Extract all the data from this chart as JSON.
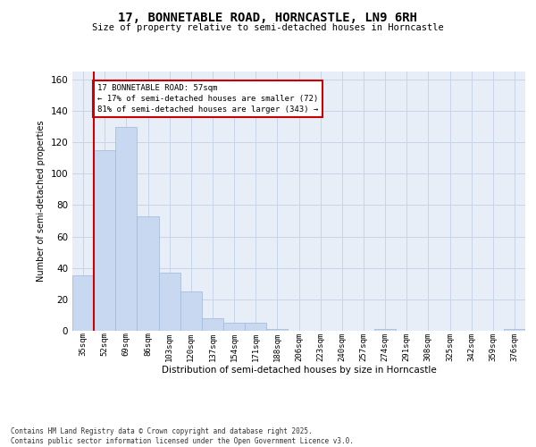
{
  "title": "17, BONNETABLE ROAD, HORNCASTLE, LN9 6RH",
  "subtitle": "Size of property relative to semi-detached houses in Horncastle",
  "xlabel": "Distribution of semi-detached houses by size in Horncastle",
  "ylabel": "Number of semi-detached properties",
  "property_label": "17 BONNETABLE ROAD: 57sqm",
  "pct_smaller": 17,
  "pct_larger": 81,
  "count_smaller": 72,
  "count_larger": 343,
  "bin_labels": [
    "35sqm",
    "52sqm",
    "69sqm",
    "86sqm",
    "103sqm",
    "120sqm",
    "137sqm",
    "154sqm",
    "171sqm",
    "188sqm",
    "206sqm",
    "223sqm",
    "240sqm",
    "257sqm",
    "274sqm",
    "291sqm",
    "308sqm",
    "325sqm",
    "342sqm",
    "359sqm",
    "376sqm"
  ],
  "bar_values": [
    35,
    115,
    130,
    73,
    37,
    25,
    8,
    5,
    5,
    1,
    0,
    0,
    0,
    0,
    1,
    0,
    0,
    0,
    0,
    0,
    1
  ],
  "bar_color": "#c8d8f0",
  "bar_edge_color": "#a0b8d8",
  "vline_color": "#cc0000",
  "vline_x": 0.5,
  "ylim": [
    0,
    165
  ],
  "yticks": [
    0,
    20,
    40,
    60,
    80,
    100,
    120,
    140,
    160
  ],
  "grid_color": "#c8d4e8",
  "background_color": "#e8eef8",
  "footer_line1": "Contains HM Land Registry data © Crown copyright and database right 2025.",
  "footer_line2": "Contains public sector information licensed under the Open Government Licence v3.0."
}
